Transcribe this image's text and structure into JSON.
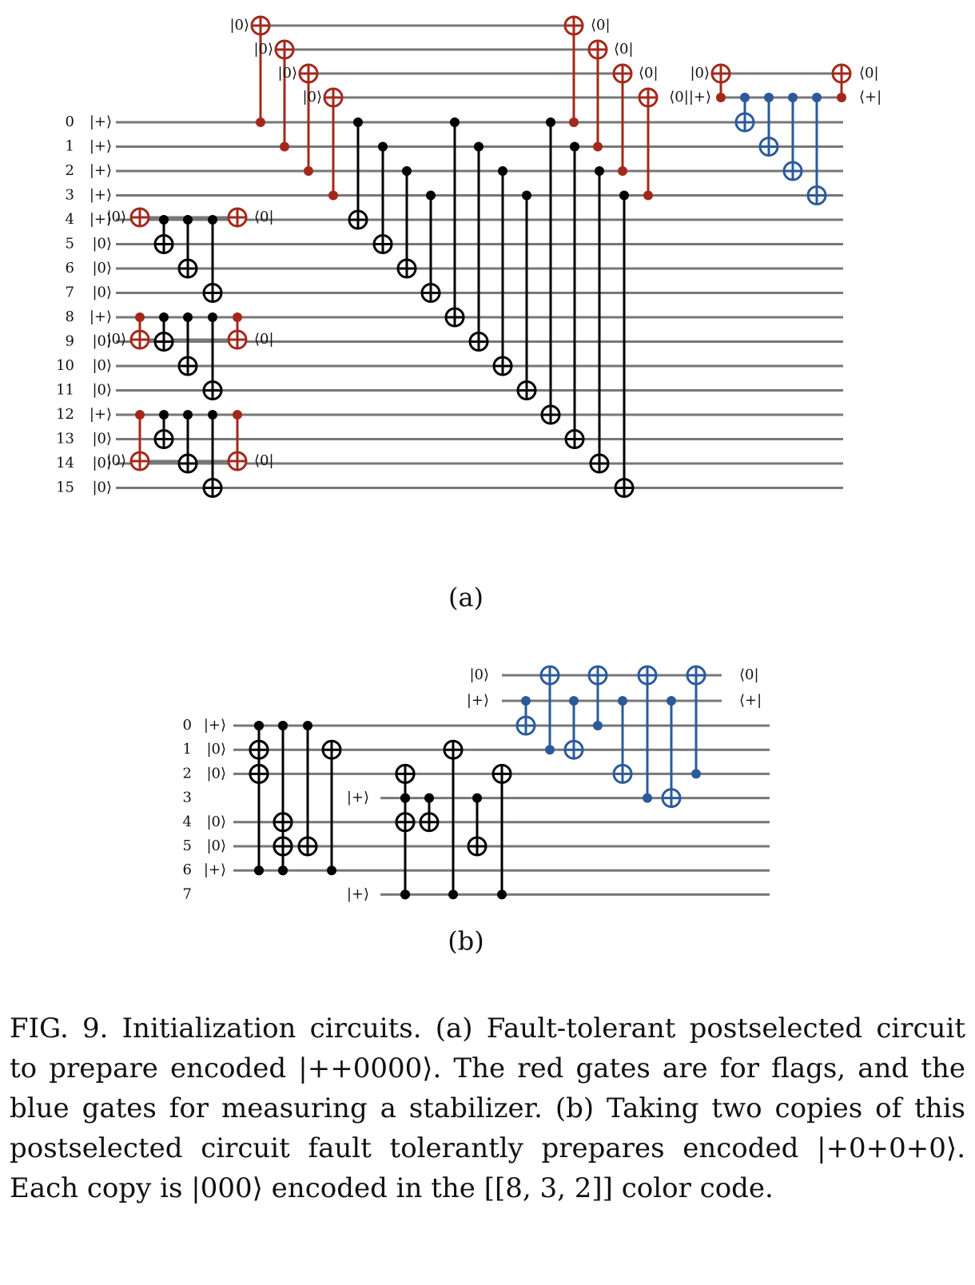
{
  "colors": {
    "wire": "#777777",
    "black": "#000000",
    "flag": "#a4281a",
    "stab": "#2b5a9b"
  },
  "panel_a": {
    "label": "(a)",
    "data_wires": [
      {
        "index": "0",
        "ket": "|+⟩"
      },
      {
        "index": "1",
        "ket": "|+⟩"
      },
      {
        "index": "2",
        "ket": "|+⟩"
      },
      {
        "index": "3",
        "ket": "|+⟩"
      },
      {
        "index": "4",
        "ket": "|+⟩"
      },
      {
        "index": "5",
        "ket": "|0⟩"
      },
      {
        "index": "6",
        "ket": "|0⟩"
      },
      {
        "index": "7",
        "ket": "|0⟩"
      },
      {
        "index": "8",
        "ket": "|+⟩"
      },
      {
        "index": "9",
        "ket": "|0⟩"
      },
      {
        "index": "10",
        "ket": "|0⟩"
      },
      {
        "index": "11",
        "ket": "|0⟩"
      },
      {
        "index": "12",
        "ket": "|+⟩"
      },
      {
        "index": "13",
        "ket": "|0⟩"
      },
      {
        "index": "14",
        "ket": "|0⟩"
      },
      {
        "index": "15",
        "ket": "|0⟩"
      }
    ],
    "ancilla_in": "|0⟩",
    "ancilla_out": "⟨0|",
    "stab_in": "|0⟩",
    "stab_plus_in": "⟨0||+⟩",
    "stab_out_0": "⟨0|",
    "stab_out_plus": "⟨+|"
  },
  "panel_b": {
    "label": "(b)",
    "wires": [
      {
        "index": "0",
        "ket": "|+⟩"
      },
      {
        "index": "1",
        "ket": "|0⟩"
      },
      {
        "index": "2",
        "ket": "|0⟩"
      },
      {
        "index": "3",
        "ket": ""
      },
      {
        "index": "4",
        "ket": "|0⟩"
      },
      {
        "index": "5",
        "ket": "|0⟩"
      },
      {
        "index": "6",
        "ket": "|+⟩"
      },
      {
        "index": "7",
        "ket": ""
      }
    ],
    "mid_ket": "|+⟩",
    "anc_in_0": "|0⟩",
    "anc_in_plus": "|+⟩",
    "anc_out_0": "⟨0|",
    "anc_out_plus": "⟨+|"
  },
  "caption": "FIG. 9. Initialization circuits. (a) Fault-tolerant postselected circuit to prepare encoded |++0000⟩. The red gates are for flags, and the blue gates for measuring a stabilizer. (b) Taking two copies of this postselected circuit fault tolerantly prepares encoded |+0+0+0⟩. Each copy is |000⟩ encoded in the [[8, 3, 2]] color code."
}
